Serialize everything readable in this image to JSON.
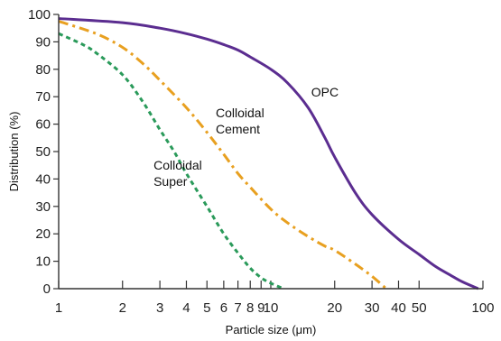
{
  "chart_data": {
    "type": "line",
    "title": "",
    "xlabel": "Particle size (μm)",
    "ylabel": "Distribution (%)",
    "xscale": "log",
    "xlim": [
      1,
      100
    ],
    "ylim": [
      0,
      100
    ],
    "grid": false,
    "legend": "none",
    "x_ticks": [
      {
        "value": 1,
        "label": "1"
      },
      {
        "value": 2,
        "label": "2"
      },
      {
        "value": 3,
        "label": "3"
      },
      {
        "value": 4,
        "label": "4"
      },
      {
        "value": 5,
        "label": "5"
      },
      {
        "value": 6,
        "label": "6"
      },
      {
        "value": 7,
        "label": "7"
      },
      {
        "value": 8,
        "label": "8"
      },
      {
        "value": 9,
        "label": "9"
      },
      {
        "value": 10,
        "label": "10"
      },
      {
        "value": 20,
        "label": "20"
      },
      {
        "value": 30,
        "label": "30"
      },
      {
        "value": 40,
        "label": "40"
      },
      {
        "value": 50,
        "label": "50"
      },
      {
        "value": 100,
        "label": "100"
      }
    ],
    "y_ticks": [
      0,
      10,
      20,
      30,
      40,
      50,
      60,
      70,
      80,
      90,
      100
    ],
    "series": [
      {
        "label": "OPC",
        "color": "#5b2d90",
        "style": "solid",
        "points": [
          [
            1,
            98.5
          ],
          [
            2,
            97
          ],
          [
            3,
            95
          ],
          [
            4,
            93
          ],
          [
            5,
            91
          ],
          [
            6,
            89
          ],
          [
            7,
            87
          ],
          [
            8,
            84.5
          ],
          [
            10,
            80
          ],
          [
            12,
            75
          ],
          [
            15,
            66
          ],
          [
            18,
            55
          ],
          [
            20,
            48
          ],
          [
            25,
            35
          ],
          [
            30,
            27
          ],
          [
            40,
            18
          ],
          [
            50,
            12.5
          ],
          [
            60,
            8
          ],
          [
            70,
            5
          ],
          [
            80,
            2.5
          ],
          [
            95,
            0
          ]
        ]
      },
      {
        "label": "Colloidal Cement",
        "color": "#e8a020",
        "style": "dash-dot",
        "points": [
          [
            1,
            97.5
          ],
          [
            1.5,
            93
          ],
          [
            2,
            88
          ],
          [
            2.5,
            82
          ],
          [
            3,
            76
          ],
          [
            4,
            66
          ],
          [
            5,
            57
          ],
          [
            6,
            49
          ],
          [
            7,
            42
          ],
          [
            8,
            37
          ],
          [
            10,
            29
          ],
          [
            12,
            24
          ],
          [
            15,
            19
          ],
          [
            18,
            15.5
          ],
          [
            20,
            14
          ],
          [
            25,
            9
          ],
          [
            30,
            4.5
          ],
          [
            35,
            0
          ]
        ]
      },
      {
        "label": "Colloidal Super",
        "color": "#2a9a5a",
        "style": "dashed",
        "points": [
          [
            1,
            93
          ],
          [
            1.3,
            89
          ],
          [
            1.5,
            86
          ],
          [
            2,
            78
          ],
          [
            2.5,
            68
          ],
          [
            3,
            58
          ],
          [
            3.5,
            50
          ],
          [
            4,
            42
          ],
          [
            5,
            30
          ],
          [
            6,
            20
          ],
          [
            7,
            13
          ],
          [
            8,
            7.5
          ],
          [
            9,
            4
          ],
          [
            10,
            2
          ],
          [
            11.5,
            0
          ]
        ]
      }
    ],
    "annotations": [
      {
        "text": [
          "OPC"
        ],
        "x": 15.5,
        "y": 70
      },
      {
        "text": [
          "Colloidal",
          "Cement"
        ],
        "x": 5.5,
        "y": 62.5
      },
      {
        "text": [
          "Colloidal",
          "Super"
        ],
        "x": 2.8,
        "y": 43.5
      }
    ]
  }
}
